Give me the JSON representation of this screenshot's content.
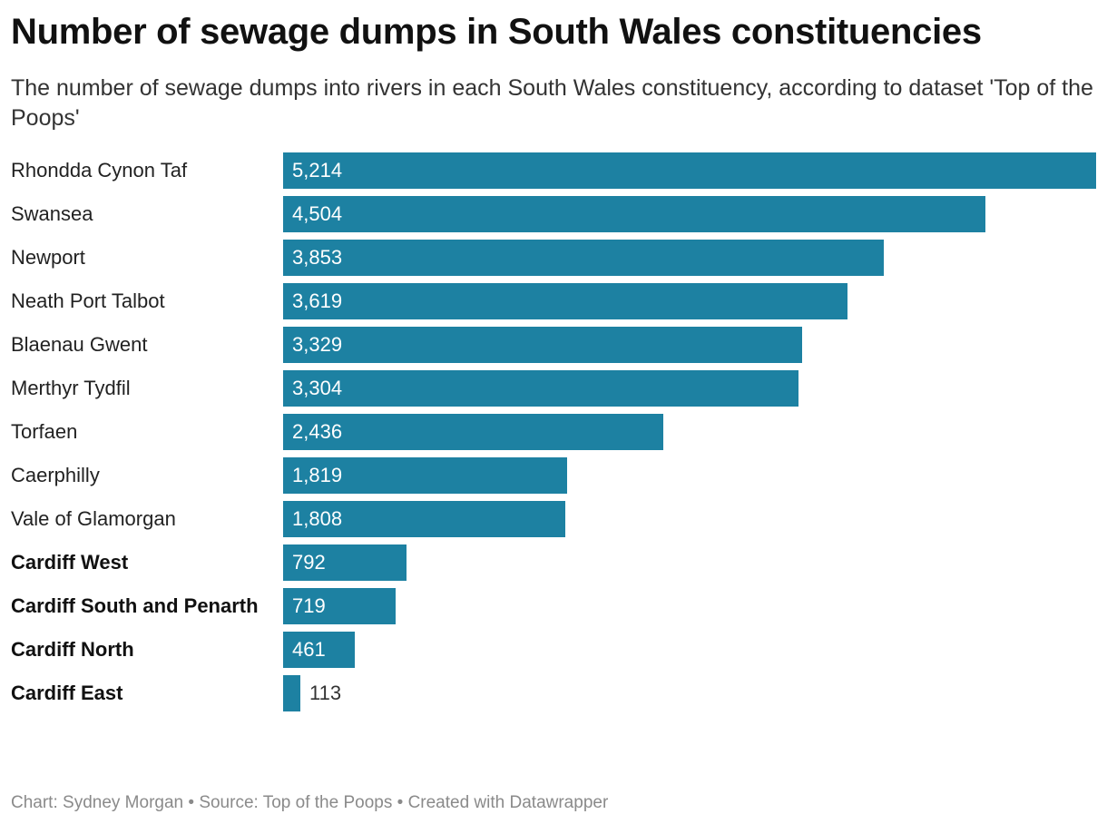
{
  "header": {
    "title": "Number of sewage dumps in South Wales constituencies",
    "subtitle": "The number of sewage dumps into rivers in each South Wales constituency, according to dataset 'Top of the Poops'"
  },
  "footer": {
    "credit": "Chart: Sydney Morgan",
    "separator": "•",
    "source": "Source: Top of the Poops",
    "tool": "Created with Datawrapper"
  },
  "colors": {
    "bar": "#1d81a2"
  },
  "chart_data": {
    "type": "bar",
    "orientation": "horizontal",
    "title": "Number of sewage dumps in South Wales constituencies",
    "subtitle": "The number of sewage dumps into rivers in each South Wales constituency, according to dataset 'Top of the Poops'",
    "xlim": [
      0,
      5214
    ],
    "grid": false,
    "legend": "none",
    "categories": [
      "Rhondda Cynon Taf",
      "Swansea",
      "Newport",
      "Neath Port Talbot",
      "Blaenau Gwent",
      "Merthyr Tydfil",
      "Torfaen",
      "Caerphilly",
      "Vale of Glamorgan",
      "Cardiff West",
      "Cardiff South and Penarth",
      "Cardiff North",
      "Cardiff East"
    ],
    "values": [
      5214,
      4504,
      3853,
      3619,
      3329,
      3304,
      2436,
      1819,
      1808,
      792,
      719,
      461,
      113
    ],
    "value_labels": [
      "5,214",
      "4,504",
      "3,853",
      "3,619",
      "3,329",
      "3,304",
      "2,436",
      "1,819",
      "1,808",
      "792",
      "719",
      "461",
      "113"
    ],
    "highlighted": [
      false,
      false,
      false,
      false,
      false,
      false,
      false,
      false,
      false,
      true,
      true,
      true,
      true
    ]
  }
}
